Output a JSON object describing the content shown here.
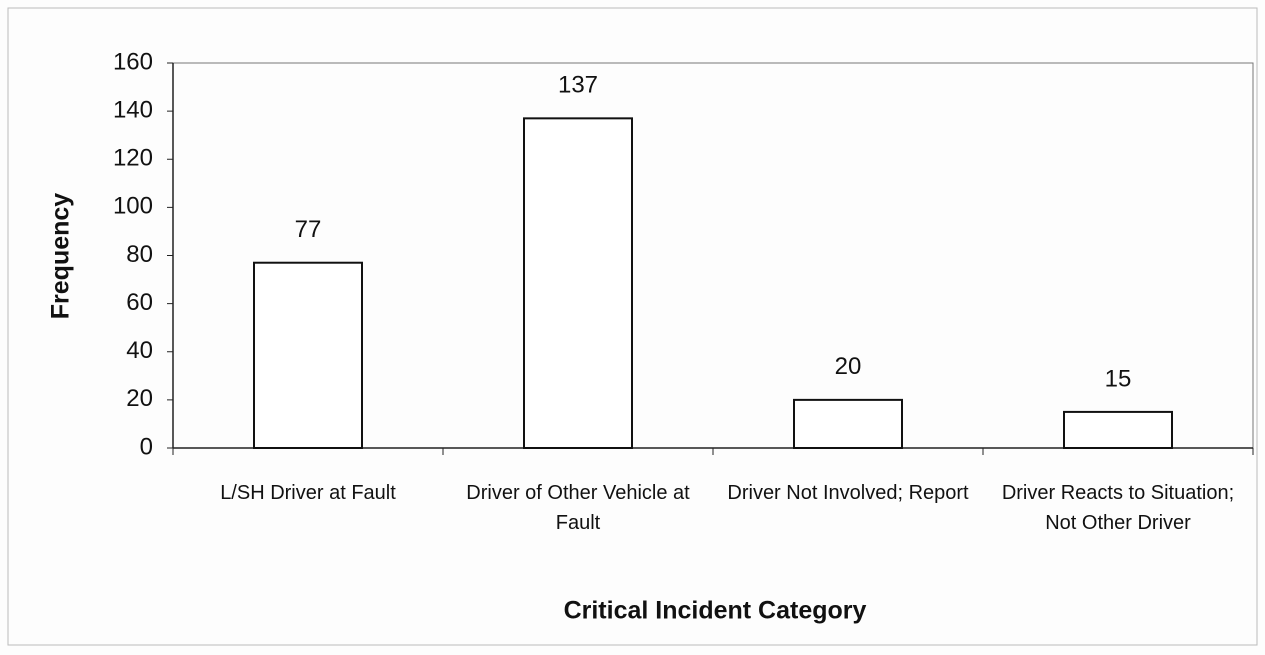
{
  "chart_data": {
    "type": "bar",
    "categories": [
      "L/SH Driver at Fault",
      "Driver of Other Vehicle at Fault",
      "Driver Not Involved; Report",
      "Driver Reacts to Situation; Not Other Driver"
    ],
    "values": [
      77,
      137,
      20,
      15
    ],
    "color": "#ffffff",
    "x_label": "Critical Incident Category",
    "y_label": "Frequency",
    "ylim": [
      0,
      160
    ],
    "yticks": [
      0,
      20,
      40,
      60,
      80,
      100,
      120,
      140,
      160
    ],
    "grid": false
  }
}
